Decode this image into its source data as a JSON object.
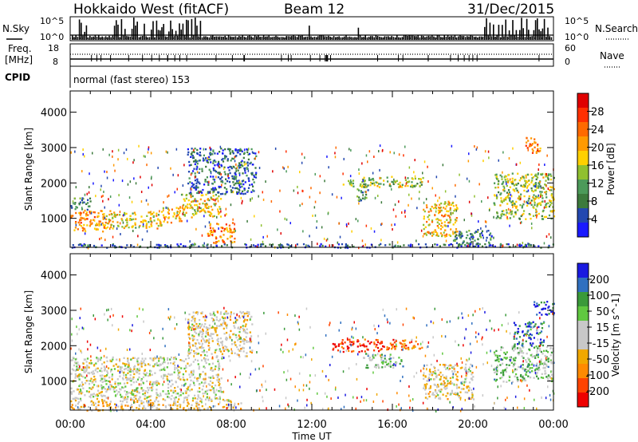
{
  "header": {
    "radar": "Hokkaido West (fitACF)",
    "beam": "Beam 12",
    "date": "31/Dec/2015"
  },
  "top_panels": {
    "nsky_label": "N.Sky",
    "nsky_ticks": [
      "10^5",
      "10^0"
    ],
    "nsearch_label": "N.Search",
    "freq_label": "Freq.",
    "freq_unit": "[MHz]",
    "freq_ticks": [
      "18",
      "8"
    ],
    "nave_label": "Nave",
    "nave_ticks": [
      "60",
      "0"
    ],
    "cpid_label": "CPID",
    "cpid_text": "normal (fast stereo) 153",
    "right_ticks": [
      "10^5",
      "10^0"
    ]
  },
  "colors": {
    "power": [
      "#1a1aff",
      "#2348b0",
      "#3c7a3c",
      "#4c9a5a",
      "#90c030",
      "#ffd000",
      "#ff9a00",
      "#ff6a00",
      "#ff3000",
      "#e00000"
    ],
    "velocity": [
      "#ee0000",
      "#ff4400",
      "#ff8a00",
      "#f0a800",
      "#c8c8c8",
      "#c8c8c8",
      "#60c840",
      "#3a9a3a",
      "#3070c0",
      "#1a1ae0"
    ]
  },
  "chart_data": [
    {
      "type": "heatmap",
      "name": "power-panel",
      "xlabel": "Time UT",
      "ylabel": "Slant Range [km]",
      "xlim": [
        0,
        24
      ],
      "ylim": [
        180,
        4600
      ],
      "y_ticks": [
        "1000",
        "2000",
        "3000",
        "4000"
      ],
      "colorbar": {
        "label": "Power [dB]",
        "range": [
          0,
          32
        ],
        "ticks": [
          "4",
          "8",
          "12",
          "16",
          "20",
          "24",
          "28"
        ]
      },
      "regions": [
        {
          "t0": 0.0,
          "t1": 2.0,
          "r0": 650,
          "r1": 1250,
          "level": 0.65
        },
        {
          "t0": 2.0,
          "t1": 4.5,
          "r0": 720,
          "r1": 1200,
          "level": 0.55
        },
        {
          "t0": 4.5,
          "t1": 5.5,
          "r0": 900,
          "r1": 1350,
          "level": 0.6
        },
        {
          "t0": 5.5,
          "t1": 7.5,
          "r0": 1050,
          "r1": 1700,
          "level": 0.55
        },
        {
          "t0": 6.8,
          "t1": 8.2,
          "r0": 300,
          "r1": 900,
          "level": 0.7
        },
        {
          "t0": 0.0,
          "t1": 1.0,
          "r0": 1250,
          "r1": 1600,
          "level": 0.3
        },
        {
          "t0": 5.8,
          "t1": 9.2,
          "r0": 1700,
          "r1": 3000,
          "level": 0.2
        },
        {
          "t0": 13.5,
          "t1": 17.5,
          "r0": 1900,
          "r1": 2200,
          "level": 0.45
        },
        {
          "t0": 14.2,
          "t1": 14.8,
          "r0": 1500,
          "r1": 2000,
          "level": 0.3
        },
        {
          "t0": 17.5,
          "t1": 19.2,
          "r0": 500,
          "r1": 1500,
          "level": 0.6
        },
        {
          "t0": 19.0,
          "t1": 21.0,
          "r0": 250,
          "r1": 700,
          "level": 0.25
        },
        {
          "t0": 21.0,
          "t1": 24.0,
          "r0": 1000,
          "r1": 2300,
          "level": 0.45
        },
        {
          "t0": 22.6,
          "t1": 23.4,
          "r0": 2850,
          "r1": 3300,
          "level": 0.75
        },
        {
          "t0": 0.0,
          "t1": 24.0,
          "r0": 190,
          "r1": 300,
          "level": 0.15
        }
      ]
    },
    {
      "type": "heatmap",
      "name": "velocity-panel",
      "xlabel": "Time UT",
      "ylabel": "Slant Range [km]",
      "xlim": [
        0,
        24
      ],
      "ylim": [
        180,
        4600
      ],
      "y_ticks": [
        "1000",
        "2000",
        "3000",
        "4000"
      ],
      "x_ticks": [
        "00:00",
        "04:00",
        "08:00",
        "12:00",
        "16:00",
        "20:00",
        "00:00"
      ],
      "colorbar": {
        "label": "Velocity [m s^-1]",
        "ticks": [
          "-200",
          "-100",
          "-50",
          "-15",
          "15",
          "50",
          "100",
          "200"
        ]
      },
      "regions": [
        {
          "t0": 0.0,
          "t1": 7.5,
          "r0": 500,
          "r1": 1700,
          "level": 0.5
        },
        {
          "t0": 5.8,
          "t1": 9.0,
          "r0": 1700,
          "r1": 3000,
          "level": 0.45
        },
        {
          "t0": 0.0,
          "t1": 8.5,
          "r0": 190,
          "r1": 500,
          "level": 0.4
        },
        {
          "t0": 13.0,
          "t1": 15.5,
          "r0": 1850,
          "r1": 2200,
          "level": 0.05
        },
        {
          "t0": 15.5,
          "t1": 17.5,
          "r0": 1900,
          "r1": 2200,
          "level": 0.25
        },
        {
          "t0": 17.5,
          "t1": 20.0,
          "r0": 500,
          "r1": 1500,
          "level": 0.45
        },
        {
          "t0": 21.0,
          "t1": 24.0,
          "r0": 1000,
          "r1": 2000,
          "level": 0.65
        },
        {
          "t0": 22.0,
          "t1": 23.5,
          "r0": 2000,
          "r1": 2700,
          "level": 0.85
        },
        {
          "t0": 23.0,
          "t1": 24.0,
          "r0": 2900,
          "r1": 3300,
          "level": 0.95
        },
        {
          "t0": 14.5,
          "t1": 16.5,
          "r0": 1400,
          "r1": 1800,
          "level": 0.65
        }
      ]
    }
  ]
}
